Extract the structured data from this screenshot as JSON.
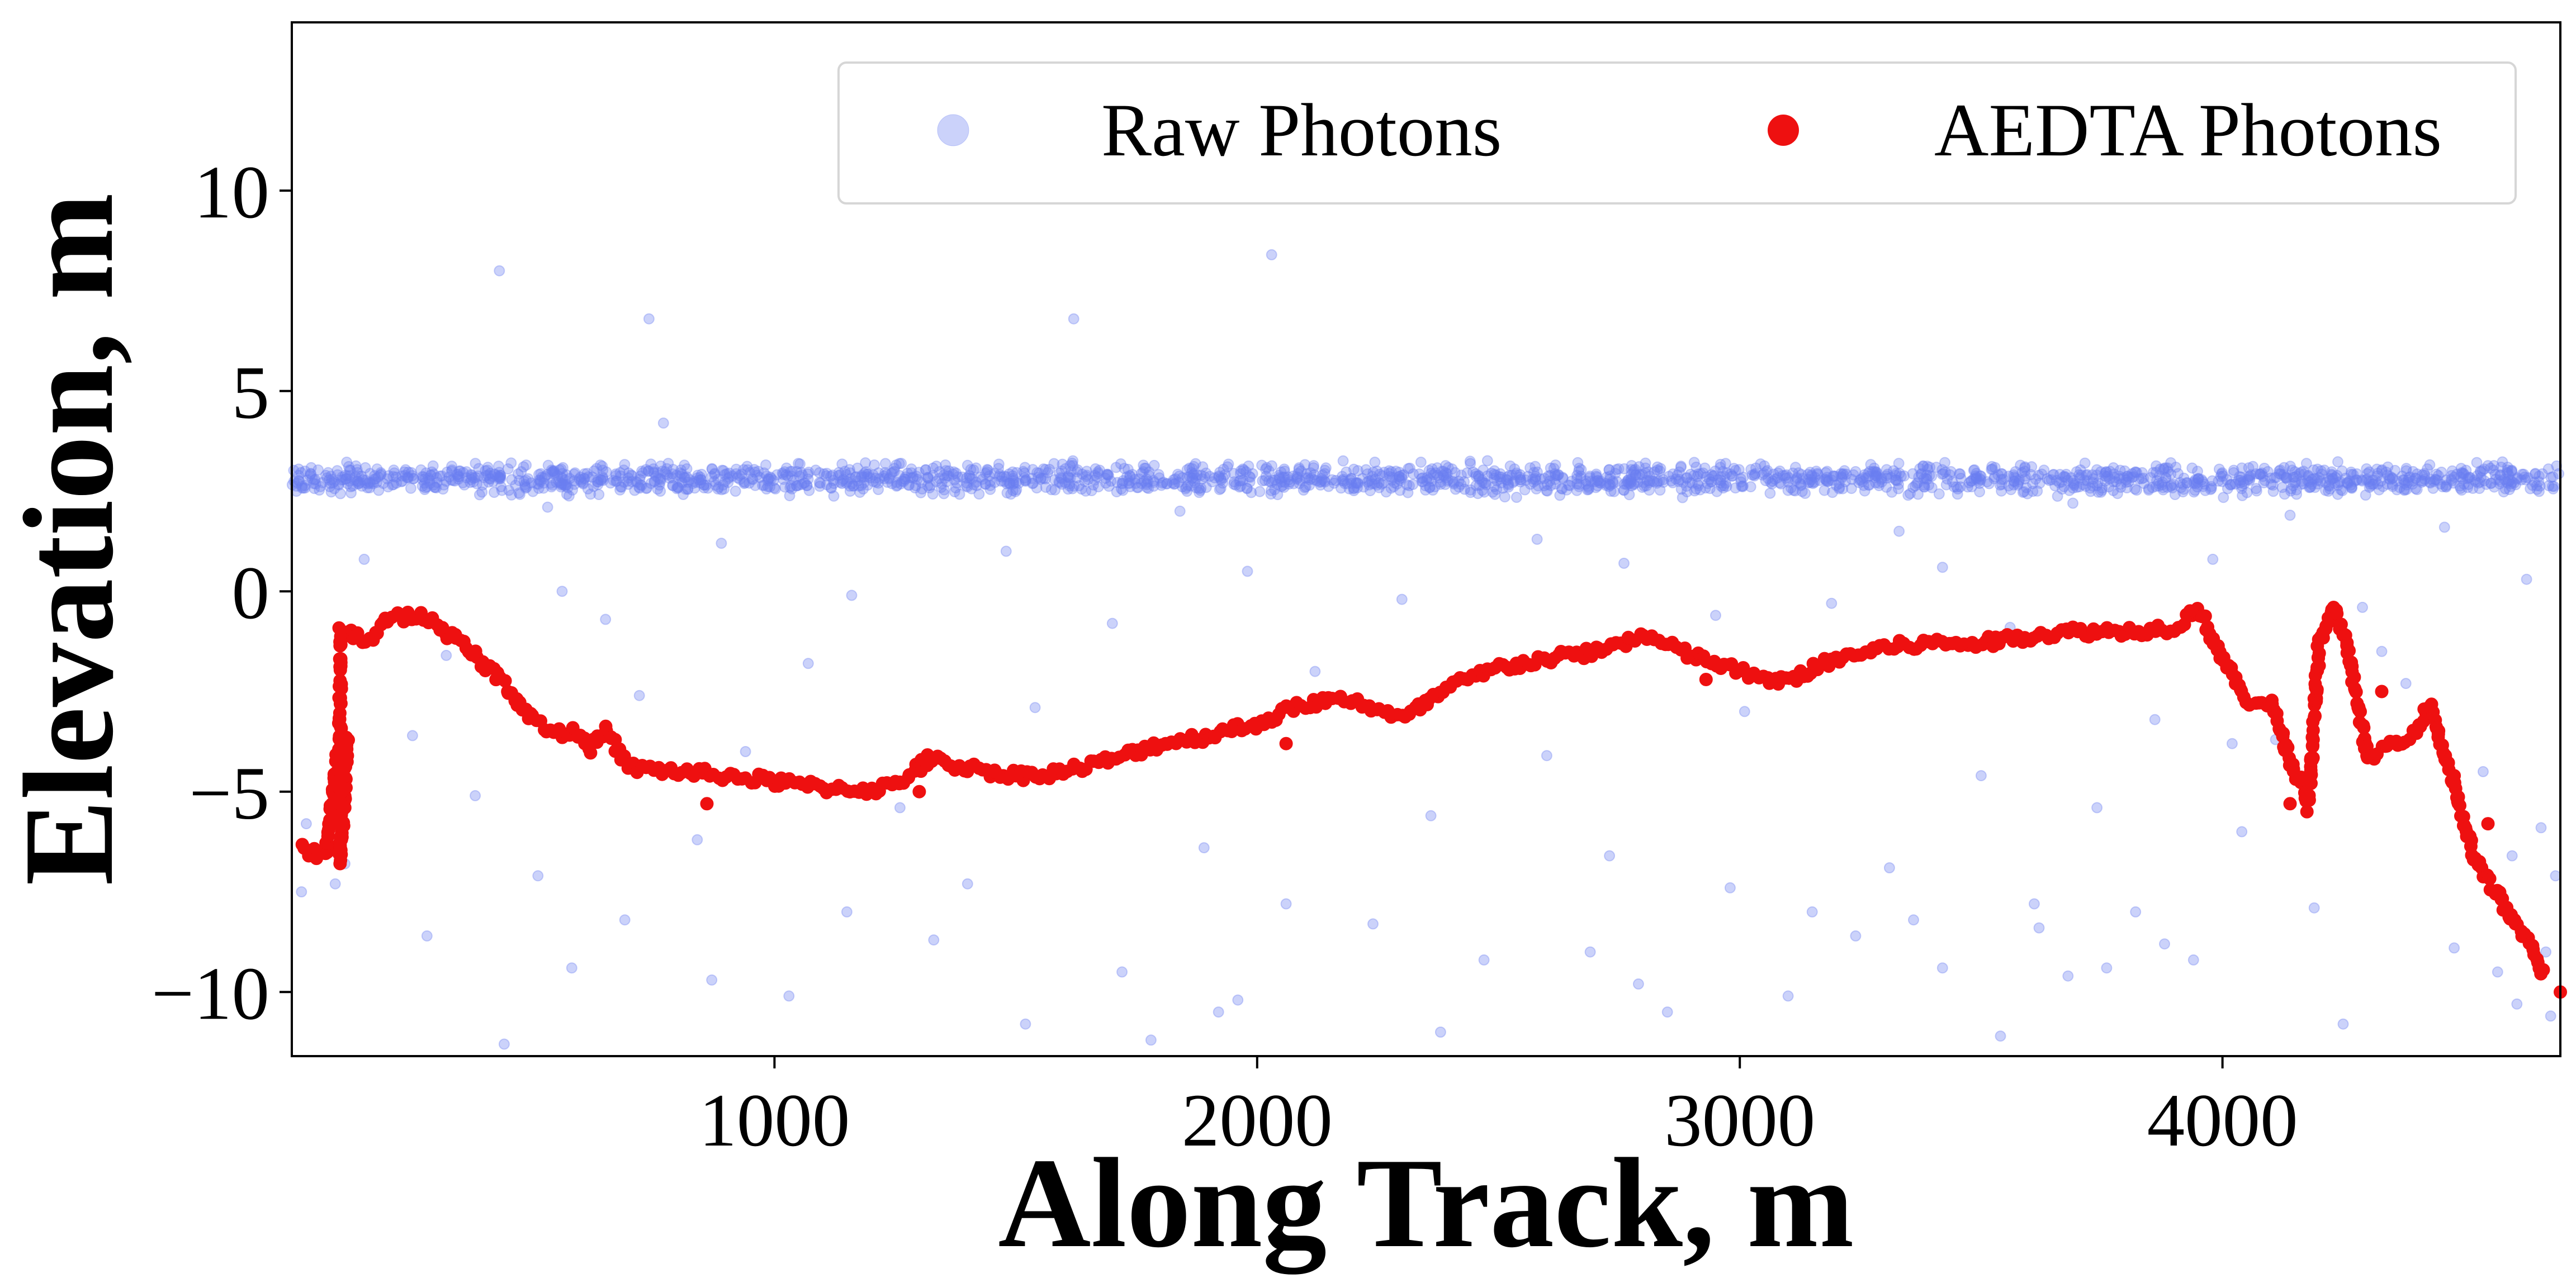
{
  "chart_data": {
    "type": "scatter",
    "xlabel": "Along Track, m",
    "ylabel": "Elevation, m",
    "xlim": [
      0,
      4700
    ],
    "ylim": [
      -11.6,
      14.2
    ],
    "xticks": [
      1000,
      2000,
      3000,
      4000
    ],
    "xtick_labels": [
      "1000",
      "2000",
      "3000",
      "4000"
    ],
    "yticks": [
      10,
      5,
      0,
      -5,
      -10
    ],
    "ytick_labels": [
      "10",
      "5",
      "0",
      "−5",
      "−10"
    ],
    "grid": false,
    "legend": {
      "placement": "top-right",
      "ncol": 2
    },
    "series": [
      {
        "name": "Raw Photons",
        "color": "#6a7ff0",
        "alpha": 0.35,
        "band": {
          "x_range": [
            0,
            4700
          ],
          "center": 2.8,
          "spread": 0.22
        },
        "points": [
          [
            430,
            8.0
          ],
          [
            2030,
            8.4
          ],
          [
            740,
            6.8
          ],
          [
            1620,
            6.8
          ],
          [
            770,
            4.2
          ],
          [
            530,
            2.1
          ],
          [
            1840,
            2.0
          ],
          [
            3690,
            2.2
          ],
          [
            4140,
            1.9
          ],
          [
            4460,
            1.6
          ],
          [
            3330,
            1.5
          ],
          [
            2580,
            1.3
          ],
          [
            890,
            1.2
          ],
          [
            1480,
            1.0
          ],
          [
            3980,
            0.8
          ],
          [
            150,
            0.8
          ],
          [
            2760,
            0.7
          ],
          [
            3420,
            0.6
          ],
          [
            1980,
            0.5
          ],
          [
            4630,
            0.3
          ],
          [
            560,
            0.0
          ],
          [
            1160,
            -0.1
          ],
          [
            2300,
            -0.2
          ],
          [
            3190,
            -0.3
          ],
          [
            4290,
            -0.4
          ],
          [
            650,
            -0.7
          ],
          [
            1700,
            -0.8
          ],
          [
            2950,
            -0.6
          ],
          [
            3560,
            -0.9
          ],
          [
            4330,
            -1.5
          ],
          [
            320,
            -1.6
          ],
          [
            1070,
            -1.8
          ],
          [
            2120,
            -2.0
          ],
          [
            4380,
            -2.3
          ],
          [
            720,
            -2.6
          ],
          [
            1540,
            -2.9
          ],
          [
            3010,
            -3.0
          ],
          [
            3860,
            -3.2
          ],
          [
            4110,
            -3.7
          ],
          [
            250,
            -3.6
          ],
          [
            940,
            -4.0
          ],
          [
            2600,
            -4.1
          ],
          [
            3500,
            -4.6
          ],
          [
            4540,
            -4.5
          ],
          [
            380,
            -5.1
          ],
          [
            1260,
            -5.4
          ],
          [
            2360,
            -5.6
          ],
          [
            3740,
            -5.4
          ],
          [
            4040,
            -6.0
          ],
          [
            840,
            -6.2
          ],
          [
            1890,
            -6.4
          ],
          [
            2730,
            -6.6
          ],
          [
            3310,
            -6.9
          ],
          [
            4600,
            -6.6
          ],
          [
            510,
            -7.1
          ],
          [
            1400,
            -7.3
          ],
          [
            2980,
            -7.4
          ],
          [
            3610,
            -7.8
          ],
          [
            4190,
            -7.9
          ],
          [
            2060,
            -7.8
          ],
          [
            690,
            -8.2
          ],
          [
            1150,
            -8.0
          ],
          [
            2240,
            -8.3
          ],
          [
            3240,
            -8.6
          ],
          [
            3880,
            -8.8
          ],
          [
            4480,
            -8.9
          ],
          [
            280,
            -8.6
          ],
          [
            1330,
            -8.7
          ],
          [
            2470,
            -9.2
          ],
          [
            3420,
            -9.4
          ],
          [
            4570,
            -9.5
          ],
          [
            580,
            -9.4
          ],
          [
            1720,
            -9.5
          ],
          [
            2790,
            -9.8
          ],
          [
            3680,
            -9.6
          ],
          [
            870,
            -9.7
          ],
          [
            1960,
            -10.2
          ],
          [
            3100,
            -10.1
          ],
          [
            4610,
            -10.3
          ],
          [
            1030,
            -10.1
          ],
          [
            2850,
            -10.5
          ],
          [
            4250,
            -10.8
          ],
          [
            2380,
            -11.0
          ],
          [
            1780,
            -11.2
          ],
          [
            3540,
            -11.1
          ],
          [
            440,
            -11.3
          ],
          [
            1520,
            -10.8
          ],
          [
            1920,
            -10.5
          ],
          [
            2690,
            -9.0
          ],
          [
            3760,
            -9.4
          ],
          [
            30,
            -5.8
          ],
          [
            60,
            -6.5
          ],
          [
            20,
            -7.5
          ],
          [
            90,
            -7.3
          ],
          [
            110,
            -6.8
          ],
          [
            3150,
            -8.0
          ],
          [
            3360,
            -8.2
          ],
          [
            3620,
            -8.4
          ],
          [
            3820,
            -8.0
          ],
          [
            3940,
            -9.2
          ],
          [
            4660,
            -5.9
          ],
          [
            4690,
            -7.1
          ],
          [
            4670,
            -9.0
          ],
          [
            4680,
            -10.6
          ],
          [
            4020,
            -3.8
          ]
        ]
      },
      {
        "name": "AEDTA Photons",
        "color": "#ee1010",
        "alpha": 1,
        "profile": [
          [
            20,
            -6.4
          ],
          [
            70,
            -6.6
          ],
          [
            95,
            -4.0
          ],
          [
            115,
            -3.6
          ],
          [
            100,
            -6.8
          ],
          [
            100,
            -1.0
          ],
          [
            160,
            -1.2
          ],
          [
            200,
            -0.7
          ],
          [
            260,
            -0.6
          ],
          [
            300,
            -0.8
          ],
          [
            380,
            -1.6
          ],
          [
            440,
            -2.3
          ],
          [
            500,
            -3.2
          ],
          [
            560,
            -3.6
          ],
          [
            600,
            -3.5
          ],
          [
            620,
            -3.9
          ],
          [
            650,
            -3.5
          ],
          [
            700,
            -4.4
          ],
          [
            800,
            -4.5
          ],
          [
            900,
            -4.6
          ],
          [
            1000,
            -4.75
          ],
          [
            1100,
            -4.9
          ],
          [
            1200,
            -4.95
          ],
          [
            1250,
            -4.85
          ],
          [
            1320,
            -4.2
          ],
          [
            1400,
            -4.4
          ],
          [
            1500,
            -4.6
          ],
          [
            1600,
            -4.5
          ],
          [
            1700,
            -4.2
          ],
          [
            1800,
            -3.8
          ],
          [
            1900,
            -3.6
          ],
          [
            2000,
            -3.3
          ],
          [
            2100,
            -2.8
          ],
          [
            2200,
            -2.7
          ],
          [
            2300,
            -3.2
          ],
          [
            2400,
            -2.4
          ],
          [
            2500,
            -1.9
          ],
          [
            2600,
            -1.7
          ],
          [
            2700,
            -1.5
          ],
          [
            2800,
            -1.1
          ],
          [
            2900,
            -1.6
          ],
          [
            3000,
            -2.0
          ],
          [
            3080,
            -2.3
          ],
          [
            3200,
            -1.7
          ],
          [
            3300,
            -1.4
          ],
          [
            3400,
            -1.3
          ],
          [
            3500,
            -1.3
          ],
          [
            3600,
            -1.1
          ],
          [
            3700,
            -1.0
          ],
          [
            3800,
            -1.0
          ],
          [
            3900,
            -0.9
          ],
          [
            3950,
            -0.4
          ],
          [
            4000,
            -1.7
          ],
          [
            4050,
            -2.7
          ],
          [
            4100,
            -2.8
          ],
          [
            4150,
            -4.5
          ],
          [
            4180,
            -5.2
          ],
          [
            4200,
            -1.3
          ],
          [
            4230,
            -0.4
          ],
          [
            4260,
            -1.4
          ],
          [
            4300,
            -4.2
          ],
          [
            4350,
            -3.8
          ],
          [
            4400,
            -3.5
          ],
          [
            4430,
            -2.8
          ],
          [
            4470,
            -4.5
          ],
          [
            4520,
            -6.6
          ],
          [
            4560,
            -7.4
          ],
          [
            4600,
            -8.2
          ],
          [
            4640,
            -8.9
          ],
          [
            4670,
            -9.6
          ]
        ],
        "points": [
          [
            860,
            -5.3
          ],
          [
            1300,
            -5.0
          ],
          [
            2060,
            -3.8
          ],
          [
            2930,
            -2.2
          ],
          [
            4140,
            -5.3
          ],
          [
            4175,
            -5.5
          ],
          [
            4330,
            -2.5
          ],
          [
            4480,
            -4.6
          ],
          [
            4550,
            -5.8
          ],
          [
            4700,
            -10.0
          ]
        ]
      }
    ]
  }
}
